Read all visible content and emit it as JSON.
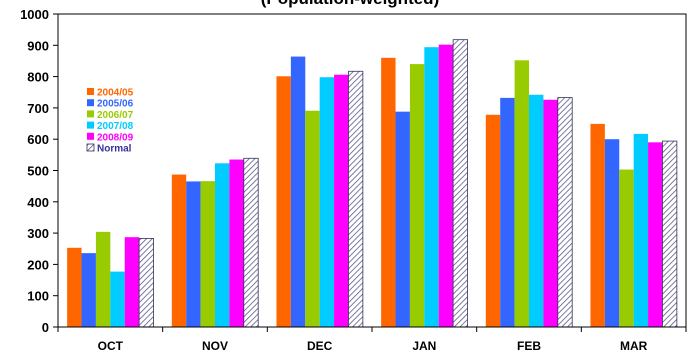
{
  "chart_data": {
    "type": "bar",
    "title": "(Population-weighted)",
    "xlabel": "",
    "ylabel": "",
    "ylim": [
      0,
      1000
    ],
    "yticks": [
      0,
      100,
      200,
      300,
      400,
      500,
      600,
      700,
      800,
      900,
      1000
    ],
    "ytick_labels": [
      "0",
      "100",
      "200",
      "300",
      "400",
      "500",
      "600",
      "700",
      "800",
      "900",
      "1000"
    ],
    "grid": false,
    "legend_position": "top-left",
    "categories": [
      "OCT",
      "NOV",
      "DEC",
      "JAN",
      "FEB",
      "MAR"
    ],
    "series": [
      {
        "name": "2004/05",
        "color": "#ff6600",
        "values": [
          253,
          487,
          801,
          860,
          678,
          649
        ]
      },
      {
        "name": "2005/06",
        "color": "#3366ff",
        "values": [
          236,
          465,
          864,
          688,
          732,
          600
        ]
      },
      {
        "name": "2006/07",
        "color": "#99cc00",
        "values": [
          304,
          466,
          691,
          840,
          852,
          503
        ]
      },
      {
        "name": "2007/08",
        "color": "#00ccff",
        "values": [
          177,
          523,
          798,
          894,
          742,
          617
        ]
      },
      {
        "name": "2008/09",
        "color": "#ff00ff",
        "values": [
          287,
          535,
          806,
          902,
          726,
          590
        ]
      },
      {
        "name": "Normal",
        "color": "#9999ff",
        "pattern": "hatched",
        "values": [
          283,
          539,
          817,
          918,
          733,
          594
        ]
      }
    ]
  }
}
